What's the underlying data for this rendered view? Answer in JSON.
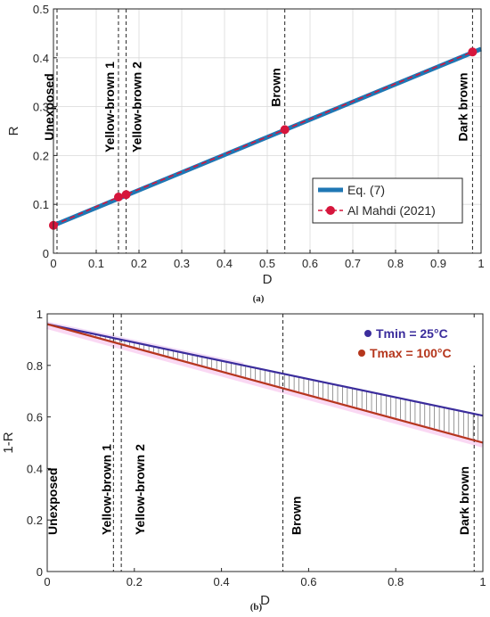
{
  "chart_data": [
    {
      "type": "line",
      "panel_label": "(a)",
      "xlabel": "D",
      "ylabel": "R",
      "xlim": [
        0,
        1
      ],
      "ylim": [
        0,
        0.5
      ],
      "xticks": [
        "0",
        "0.1",
        "0.2",
        "0.3",
        "0.4",
        "0.5",
        "0.6",
        "0.7",
        "0.8",
        "0.9",
        "1"
      ],
      "yticks": [
        "0",
        "0.1",
        "0.2",
        "0.3",
        "0.4",
        "0.5"
      ],
      "grid": true,
      "legend_position": "bottom-right",
      "series": [
        {
          "name": "Eq. (7)",
          "color": "#1f77b4",
          "style": "solid-thick",
          "x": [
            0,
            1
          ],
          "y": [
            0.057,
            0.418
          ]
        },
        {
          "name": "Al Mahdi (2021)",
          "color": "#d6163c",
          "style": "dashed-circle",
          "x": [
            0,
            0.152,
            0.17,
            0.541,
            0.98
          ],
          "y": [
            0.057,
            0.115,
            0.12,
            0.253,
            0.412
          ]
        }
      ],
      "vlines": [
        {
          "x": 0,
          "label": "Unexposed"
        },
        {
          "x": 0.152,
          "label": "Yellow-brown 1"
        },
        {
          "x": 0.17,
          "label": "Yellow-brown 2"
        },
        {
          "x": 0.541,
          "label": "Brown"
        },
        {
          "x": 0.98,
          "label": "Dark brown"
        }
      ]
    },
    {
      "type": "line",
      "panel_label": "(b)",
      "xlabel": "D",
      "ylabel": "1-R",
      "xlim": [
        0,
        1
      ],
      "ylim": [
        0,
        1
      ],
      "xticks": [
        "0",
        "0.2",
        "0.4",
        "0.6",
        "0.8",
        "1"
      ],
      "yticks": [
        "0",
        "0.2",
        "0.4",
        "0.6",
        "0.8",
        "1"
      ],
      "grid": false,
      "legend_position": "top-right",
      "series": [
        {
          "name": "Tmin = 25°C",
          "color": "#3b2d9c",
          "x": [
            0,
            1
          ],
          "y": [
            0.96,
            0.605
          ]
        },
        {
          "name": "Tmax = 100°C",
          "color": "#b5361c",
          "x": [
            0,
            1
          ],
          "y": [
            0.96,
            0.5
          ]
        }
      ],
      "vlines": [
        {
          "x": 0,
          "label": "Unexposed"
        },
        {
          "x": 0.152,
          "label": "Yellow-brown 1"
        },
        {
          "x": 0.17,
          "label": "Yellow-brown 2"
        },
        {
          "x": 0.541,
          "label": "Brown"
        },
        {
          "x": 0.98,
          "label": "Dark brown"
        }
      ]
    }
  ]
}
